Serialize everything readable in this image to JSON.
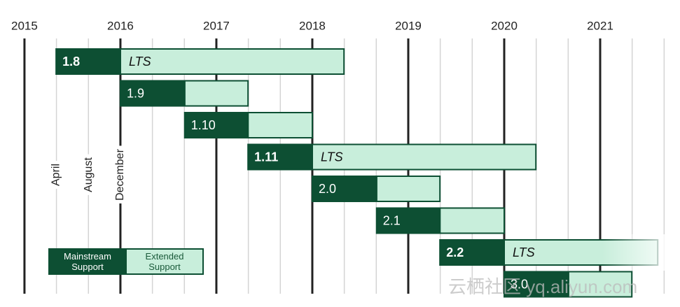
{
  "chart_data": {
    "type": "gantt",
    "categories": [
      "1.8",
      "1.9",
      "1.10",
      "1.11",
      "2.0",
      "2.1",
      "2.2",
      "3.0"
    ],
    "notes": [
      "LTS",
      null,
      null,
      "LTS",
      null,
      null,
      "LTS",
      null
    ],
    "series": [
      {
        "name": "Mainstream Support",
        "color": "#0d4f33",
        "start": [
          2015.33,
          2016,
          2016.67,
          2017.33,
          2018,
          2018.67,
          2019.33,
          2020
        ],
        "end": [
          2016,
          2016.67,
          2017.33,
          2018,
          2018.67,
          2019.33,
          2020,
          2020.67
        ]
      },
      {
        "name": "Extended Support",
        "color": "#c8eedb",
        "start": [
          2016,
          2016.67,
          2017.33,
          2018,
          2018.67,
          2019.33,
          2020,
          2020.67
        ],
        "end": [
          2018.33,
          2017.33,
          2018,
          2020.33,
          2019.33,
          2020,
          2021.6,
          2021.33
        ]
      }
    ],
    "xlim": [
      2014.745,
      2021.832
    ],
    "xticks": [
      2015,
      2016,
      2017,
      2018,
      2019,
      2020,
      2021
    ],
    "minor_divisions": 3,
    "grid": true,
    "month_labels": [
      {
        "text": "April",
        "x": 2015.33
      },
      {
        "text": "August",
        "x": 2015.67
      },
      {
        "text": "December",
        "x": 2016
      }
    ],
    "watermark": "云栖社区 yq.aliyun.com"
  }
}
